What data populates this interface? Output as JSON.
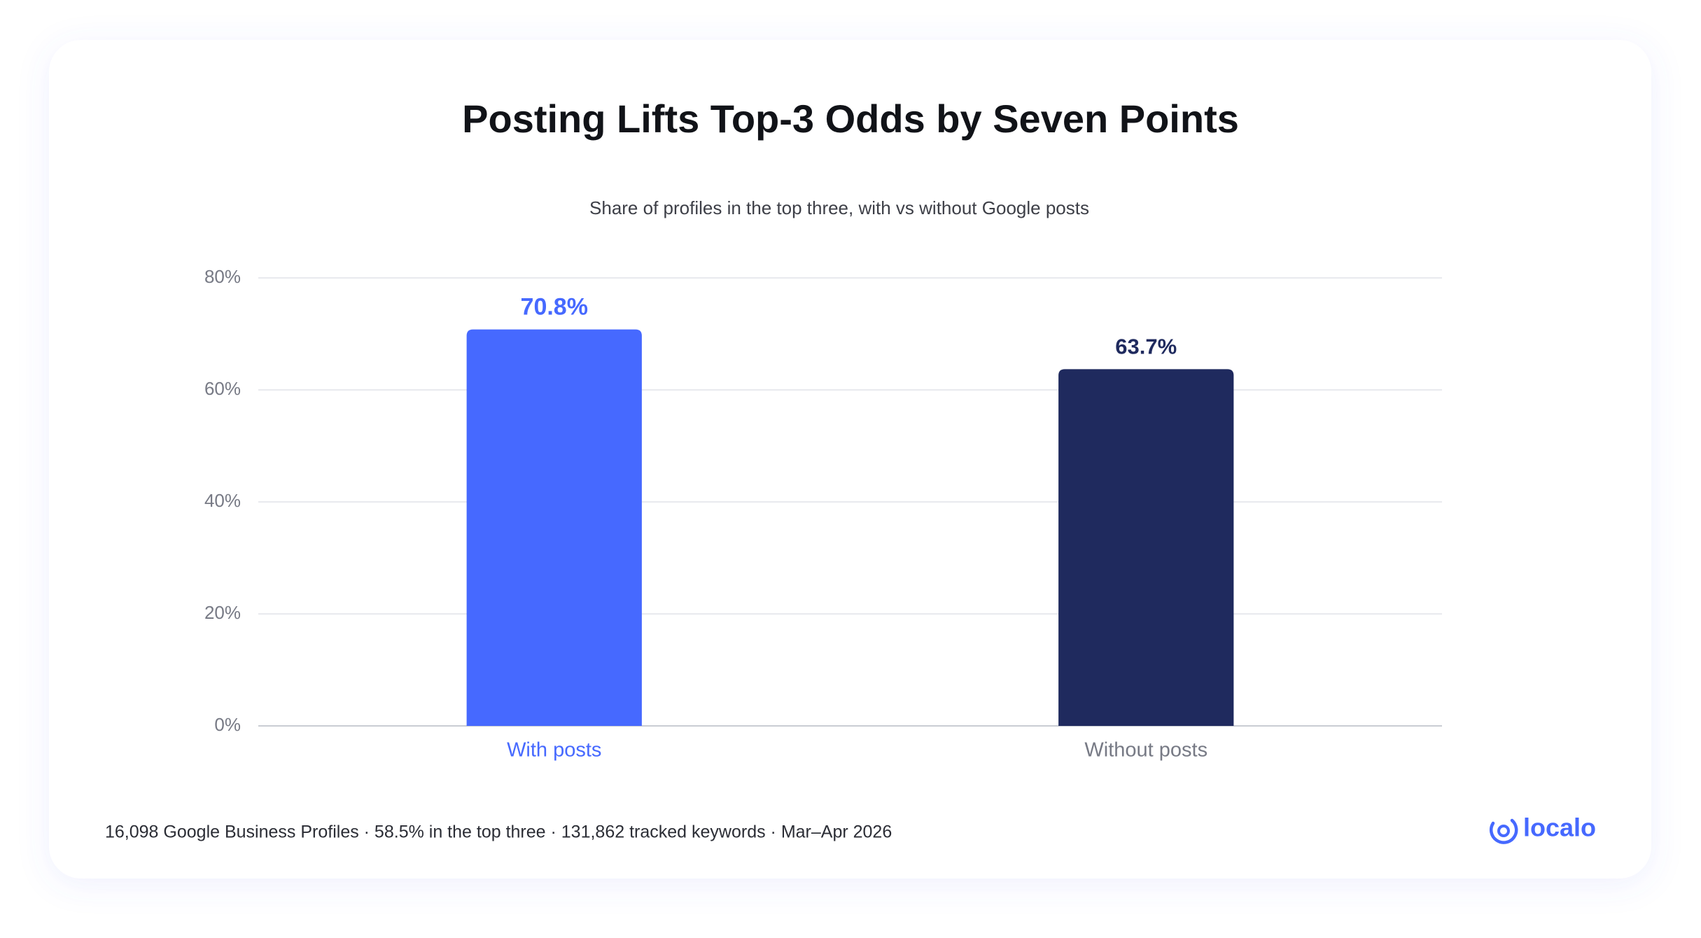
{
  "chart_data": {
    "type": "bar",
    "title": "Posting Lifts Top-3 Odds by Seven Points",
    "subtitle": "Share of profiles in the top three, with vs without Google posts",
    "categories": [
      "With posts",
      "Without posts"
    ],
    "values": [
      70.8,
      63.7
    ],
    "value_labels": [
      "70.8%",
      "63.7%"
    ],
    "colors": [
      "#4669ff",
      "#1f2a5e"
    ],
    "ylim": [
      0,
      80
    ],
    "yticks": [
      {
        "value": 0,
        "label": "0%"
      },
      {
        "value": 20,
        "label": "20%"
      },
      {
        "value": 40,
        "label": "40%"
      },
      {
        "value": 60,
        "label": "60%"
      },
      {
        "value": 80,
        "label": "80%"
      }
    ],
    "grid": true,
    "footnote": "16,098 Google Business Profiles · 58.5% in the top three · 131,862 tracked keywords · Mar–Apr 2026",
    "brand": "localo"
  }
}
